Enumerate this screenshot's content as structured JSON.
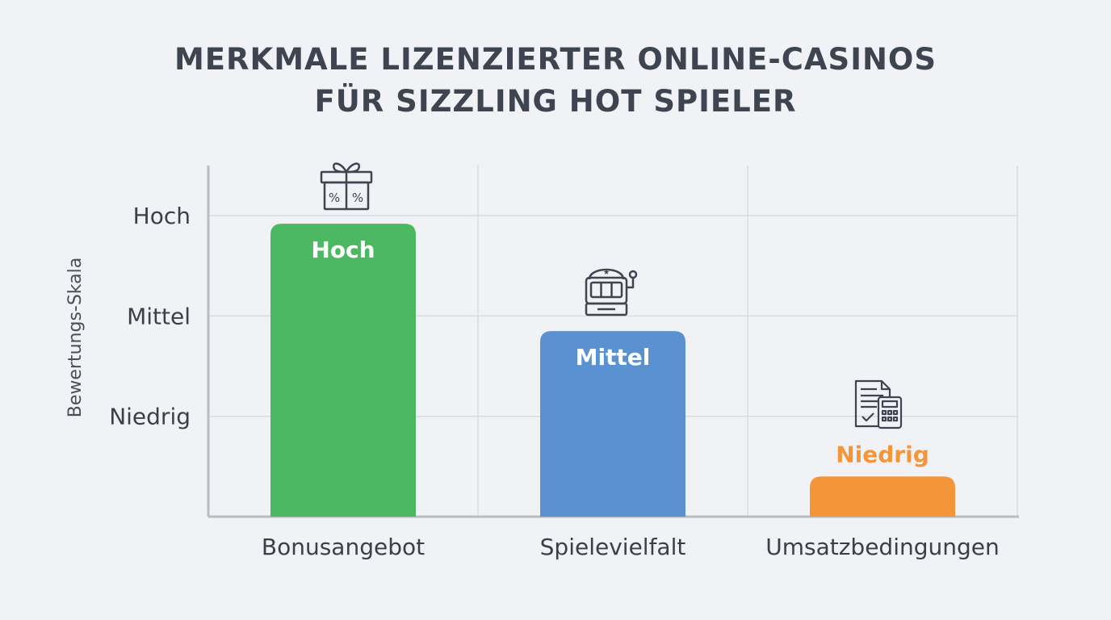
{
  "chart_data": {
    "type": "bar",
    "title": "MERKMALE LIZENZIERTER ONLINE-CASINOS FÜR SIZZLING HOT SPIELER",
    "title_lines": [
      "MERKMALE LIZENZIERTER ONLINE-CASINOS",
      "FÜR SIZZLING HOT SPIELER"
    ],
    "ylabel": "Bewertungs-Skala",
    "xlabel": "",
    "y_ticks": [
      {
        "label": "Niedrig",
        "value": 1
      },
      {
        "label": "Mittel",
        "value": 2
      },
      {
        "label": "Hoch",
        "value": 3
      }
    ],
    "ylim": [
      0,
      3.5
    ],
    "grid": true,
    "categories": [
      "Bonusangebot",
      "Spielevielfalt",
      "Umsatzbedingungen"
    ],
    "values": [
      2.92,
      1.85,
      0.4
    ],
    "data_labels": [
      "Hoch",
      "Mittel",
      "Niedrig"
    ],
    "colors": [
      "#4cb862",
      "#5a91d0",
      "#f4953a"
    ],
    "label_colors": [
      "#ffffff",
      "#ffffff",
      "#f4953a"
    ],
    "label_inside": [
      true,
      true,
      false
    ],
    "icons": [
      "gift-box-icon",
      "slot-machine-icon",
      "contract-calculator-icon"
    ]
  }
}
